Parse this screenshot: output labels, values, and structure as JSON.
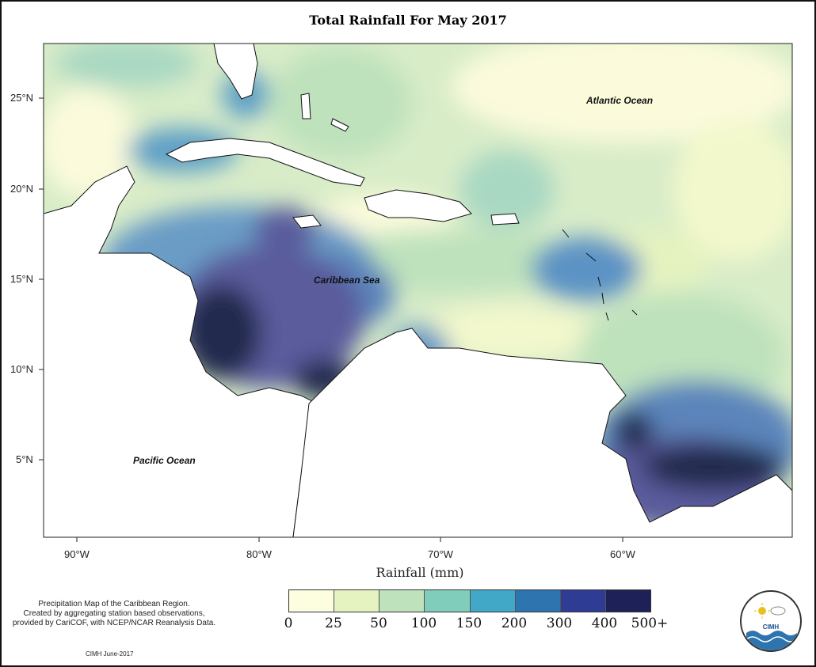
{
  "title": "Total Rainfall For May 2017",
  "axes": {
    "x_ticks": [
      "90°W",
      "80°W",
      "70°W",
      "60°W"
    ],
    "y_ticks": [
      "25°N",
      "20°N",
      "15°N",
      "10°N",
      "5°N"
    ],
    "xlabel": "Rainfall (mm)"
  },
  "labels": {
    "atlantic": "Atlantic Ocean",
    "caribbean": "Caribbean Sea",
    "pacific": "Pacific Ocean"
  },
  "legend": {
    "colors": [
      "#fdfde0",
      "#e5f3c0",
      "#bee2bc",
      "#80cdbb",
      "#42a8c8",
      "#2e75b0",
      "#2e3c93",
      "#1e2058"
    ],
    "labels": [
      "0",
      "25",
      "50",
      "100",
      "150",
      "200",
      "300",
      "400",
      "500+"
    ]
  },
  "note": {
    "line1": "Precipitation Map of the Caribbean Region.",
    "line2": "Created by aggregating station based observations,",
    "line3": "provided by CariCOF, with NCEP/NCAR Reanalysis Data.",
    "credit": "CIMH June-2017"
  },
  "logo": {
    "text": "CIMH"
  }
}
